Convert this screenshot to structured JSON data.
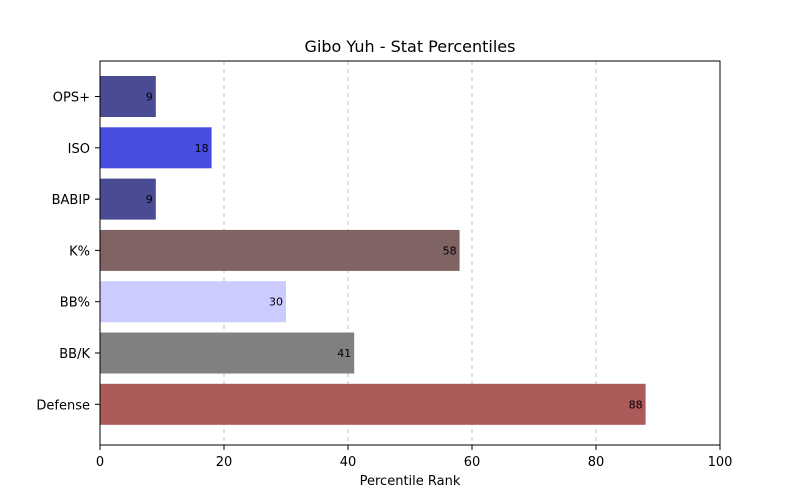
{
  "chart_data": {
    "type": "bar",
    "orientation": "horizontal",
    "title": "Gibo Yuh - Stat Percentiles",
    "xlabel": "Percentile Rank",
    "ylabel": "",
    "xlim": [
      0,
      100
    ],
    "xticks": [
      0,
      20,
      40,
      60,
      80,
      100
    ],
    "grid": "x-dashed",
    "categories": [
      "OPS+",
      "ISO",
      "BABIP",
      "K%",
      "BB%",
      "BB/K",
      "Defense"
    ],
    "values": [
      9,
      18,
      9,
      58,
      30,
      41,
      88
    ],
    "colors": [
      "#494c93",
      "#484de0",
      "#494c93",
      "#806464",
      "#cbcbff",
      "#808080",
      "#ac5a5a"
    ]
  }
}
